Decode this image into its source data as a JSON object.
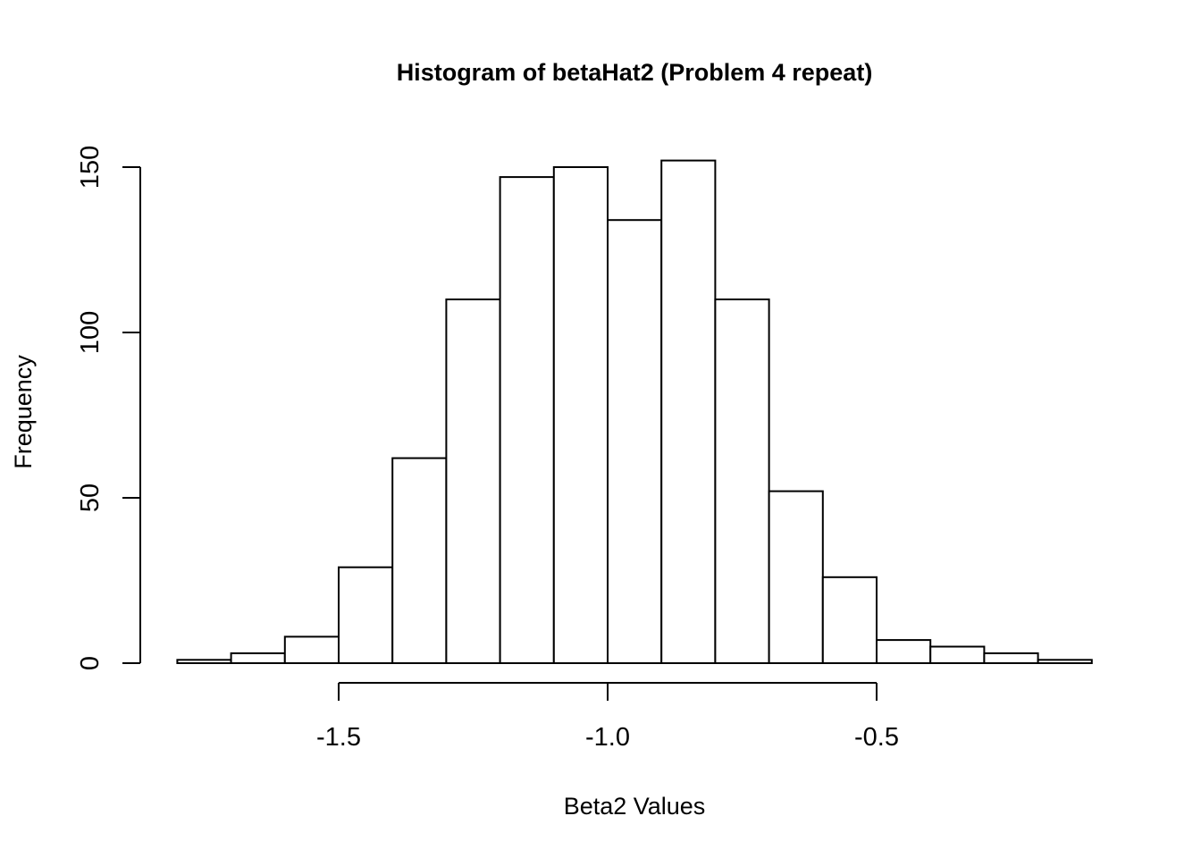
{
  "chart_data": {
    "type": "bar",
    "title": "Histogram of betaHat2 (Problem 4 repeat)",
    "xlabel": "Beta2 Values",
    "ylabel": "Frequency",
    "bins": [
      {
        "x0": -1.8,
        "x1": -1.7,
        "count": 1
      },
      {
        "x0": -1.7,
        "x1": -1.6,
        "count": 3
      },
      {
        "x0": -1.6,
        "x1": -1.5,
        "count": 8
      },
      {
        "x0": -1.5,
        "x1": -1.4,
        "count": 29
      },
      {
        "x0": -1.4,
        "x1": -1.3,
        "count": 62
      },
      {
        "x0": -1.3,
        "x1": -1.2,
        "count": 110
      },
      {
        "x0": -1.2,
        "x1": -1.1,
        "count": 147
      },
      {
        "x0": -1.1,
        "x1": -1.0,
        "count": 150
      },
      {
        "x0": -1.0,
        "x1": -0.9,
        "count": 134
      },
      {
        "x0": -0.9,
        "x1": -0.8,
        "count": 152
      },
      {
        "x0": -0.8,
        "x1": -0.7,
        "count": 110
      },
      {
        "x0": -0.7,
        "x1": -0.6,
        "count": 52
      },
      {
        "x0": -0.6,
        "x1": -0.5,
        "count": 26
      },
      {
        "x0": -0.5,
        "x1": -0.4,
        "count": 7
      },
      {
        "x0": -0.4,
        "x1": -0.3,
        "count": 5
      },
      {
        "x0": -0.3,
        "x1": -0.2,
        "count": 3
      },
      {
        "x0": -0.2,
        "x1": -0.1,
        "count": 1
      }
    ],
    "xticks": [
      {
        "value": -1.5,
        "label": "-1.5"
      },
      {
        "value": -1.0,
        "label": "-1.0"
      },
      {
        "value": -0.5,
        "label": "-0.5"
      }
    ],
    "yticks": [
      {
        "value": 0,
        "label": "0"
      },
      {
        "value": 50,
        "label": "50"
      },
      {
        "value": 100,
        "label": "100"
      },
      {
        "value": 150,
        "label": "150"
      }
    ],
    "grid": false,
    "legend": false,
    "colors": {
      "bar_fill": "#ffffff",
      "bar_stroke": "#000000",
      "axis": "#000000"
    }
  }
}
